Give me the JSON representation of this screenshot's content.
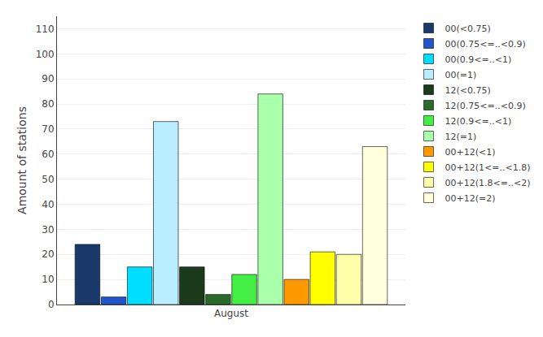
{
  "chart_data": {
    "type": "bar",
    "categories": [
      "August"
    ],
    "series": [
      {
        "name": "00(<0.75)",
        "color": "#1a3a6b",
        "values": [
          24
        ]
      },
      {
        "name": "00(0.75<=..<0.9)",
        "color": "#2255cc",
        "values": [
          3
        ]
      },
      {
        "name": "00(0.9<=..<1)",
        "color": "#00ddff",
        "values": [
          15
        ]
      },
      {
        "name": "00(=1)",
        "color": "#b8eeff",
        "values": [
          73
        ]
      },
      {
        "name": "12(<0.75)",
        "color": "#1a3a1a",
        "values": [
          15
        ]
      },
      {
        "name": "12(0.75<=..<0.9)",
        "color": "#2a6a2a",
        "values": [
          4
        ]
      },
      {
        "name": "12(0.9<=..<1)",
        "color": "#44ee44",
        "values": [
          12
        ]
      },
      {
        "name": "12(=1)",
        "color": "#aaffaa",
        "values": [
          84
        ]
      },
      {
        "name": "00+12(<1)",
        "color": "#ff9900",
        "values": [
          10
        ]
      },
      {
        "name": "00+12(1<=..<1.8)",
        "color": "#ffff00",
        "values": [
          21
        ]
      },
      {
        "name": "00+12(1.8<=..<2)",
        "color": "#ffffaa",
        "values": [
          20
        ]
      },
      {
        "name": "00+12(=2)",
        "color": "#ffffdd",
        "values": [
          63
        ]
      }
    ],
    "ylabel": "Amount of stations",
    "ylim": [
      0,
      115
    ],
    "yticks": [
      0,
      10,
      20,
      30,
      40,
      50,
      60,
      70,
      80,
      90,
      100,
      110
    ],
    "grid": true,
    "legend": "upper right"
  }
}
